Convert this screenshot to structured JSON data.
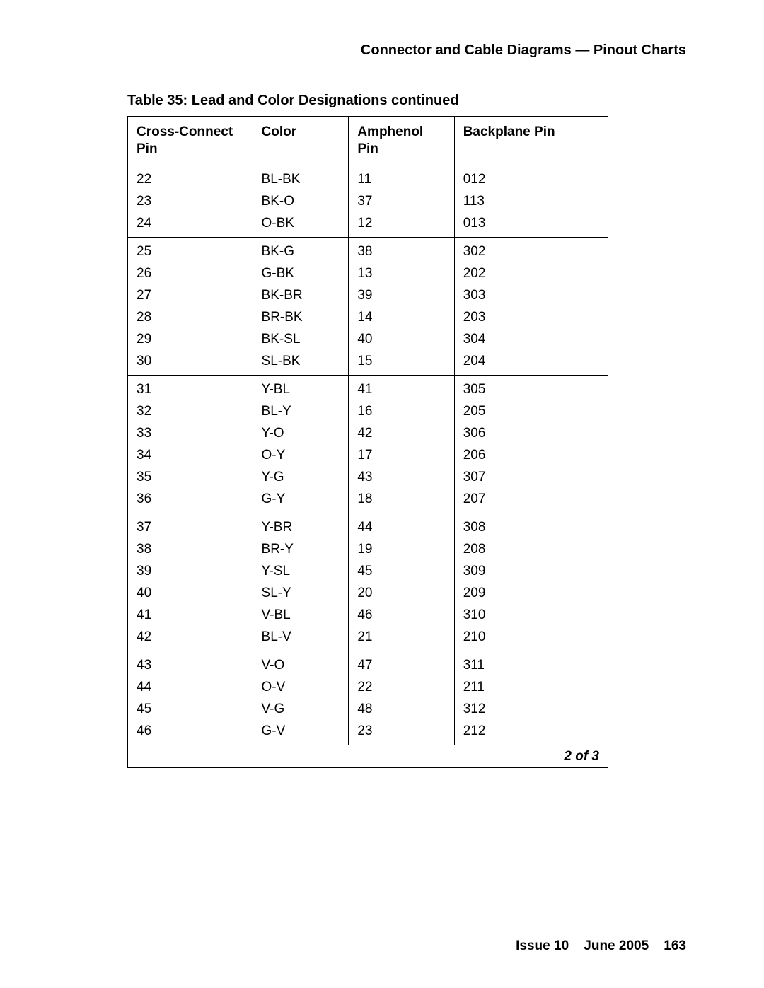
{
  "header": {
    "title": "Connector and Cable Diagrams — Pinout Charts"
  },
  "table": {
    "caption": "Table 35: Lead and Color Designations  continued",
    "columns": {
      "cross_connect": "Cross-Connect Pin",
      "color": "Color",
      "amphenol": "Amphenol Pin",
      "backplane": "Backplane Pin"
    },
    "groups": [
      [
        {
          "cc": "22",
          "color": "BL-BK",
          "amp": "11",
          "bp": "012"
        },
        {
          "cc": "23",
          "color": "BK-O",
          "amp": "37",
          "bp": "113"
        },
        {
          "cc": "24",
          "color": "O-BK",
          "amp": "12",
          "bp": "013"
        }
      ],
      [
        {
          "cc": "25",
          "color": "BK-G",
          "amp": "38",
          "bp": "302"
        },
        {
          "cc": "26",
          "color": "G-BK",
          "amp": "13",
          "bp": "202"
        },
        {
          "cc": "27",
          "color": "BK-BR",
          "amp": "39",
          "bp": "303"
        },
        {
          "cc": "28",
          "color": "BR-BK",
          "amp": "14",
          "bp": "203"
        },
        {
          "cc": "29",
          "color": "BK-SL",
          "amp": "40",
          "bp": "304"
        },
        {
          "cc": "30",
          "color": "SL-BK",
          "amp": "15",
          "bp": "204"
        }
      ],
      [
        {
          "cc": "31",
          "color": "Y-BL",
          "amp": "41",
          "bp": "305"
        },
        {
          "cc": "32",
          "color": "BL-Y",
          "amp": "16",
          "bp": "205"
        },
        {
          "cc": "33",
          "color": "Y-O",
          "amp": "42",
          "bp": "306"
        },
        {
          "cc": "34",
          "color": "O-Y",
          "amp": "17",
          "bp": "206"
        },
        {
          "cc": "35",
          "color": "Y-G",
          "amp": "43",
          "bp": "307"
        },
        {
          "cc": "36",
          "color": "G-Y",
          "amp": "18",
          "bp": "207"
        }
      ],
      [
        {
          "cc": "37",
          "color": "Y-BR",
          "amp": "44",
          "bp": "308"
        },
        {
          "cc": "38",
          "color": "BR-Y",
          "amp": "19",
          "bp": "208"
        },
        {
          "cc": "39",
          "color": "Y-SL",
          "amp": "45",
          "bp": "309"
        },
        {
          "cc": "40",
          "color": "SL-Y",
          "amp": "20",
          "bp": "209"
        },
        {
          "cc": "41",
          "color": "V-BL",
          "amp": "46",
          "bp": "310"
        },
        {
          "cc": "42",
          "color": "BL-V",
          "amp": "21",
          "bp": "210"
        }
      ],
      [
        {
          "cc": "43",
          "color": "V-O",
          "amp": "47",
          "bp": "311"
        },
        {
          "cc": "44",
          "color": "O-V",
          "amp": "22",
          "bp": "211"
        },
        {
          "cc": "45",
          "color": "V-G",
          "amp": "48",
          "bp": "312"
        },
        {
          "cc": "46",
          "color": "G-V",
          "amp": "23",
          "bp": "212"
        }
      ]
    ],
    "pager": "2 of 3"
  },
  "footer": {
    "issue": "Issue 10",
    "date": "June 2005",
    "page": "163"
  }
}
